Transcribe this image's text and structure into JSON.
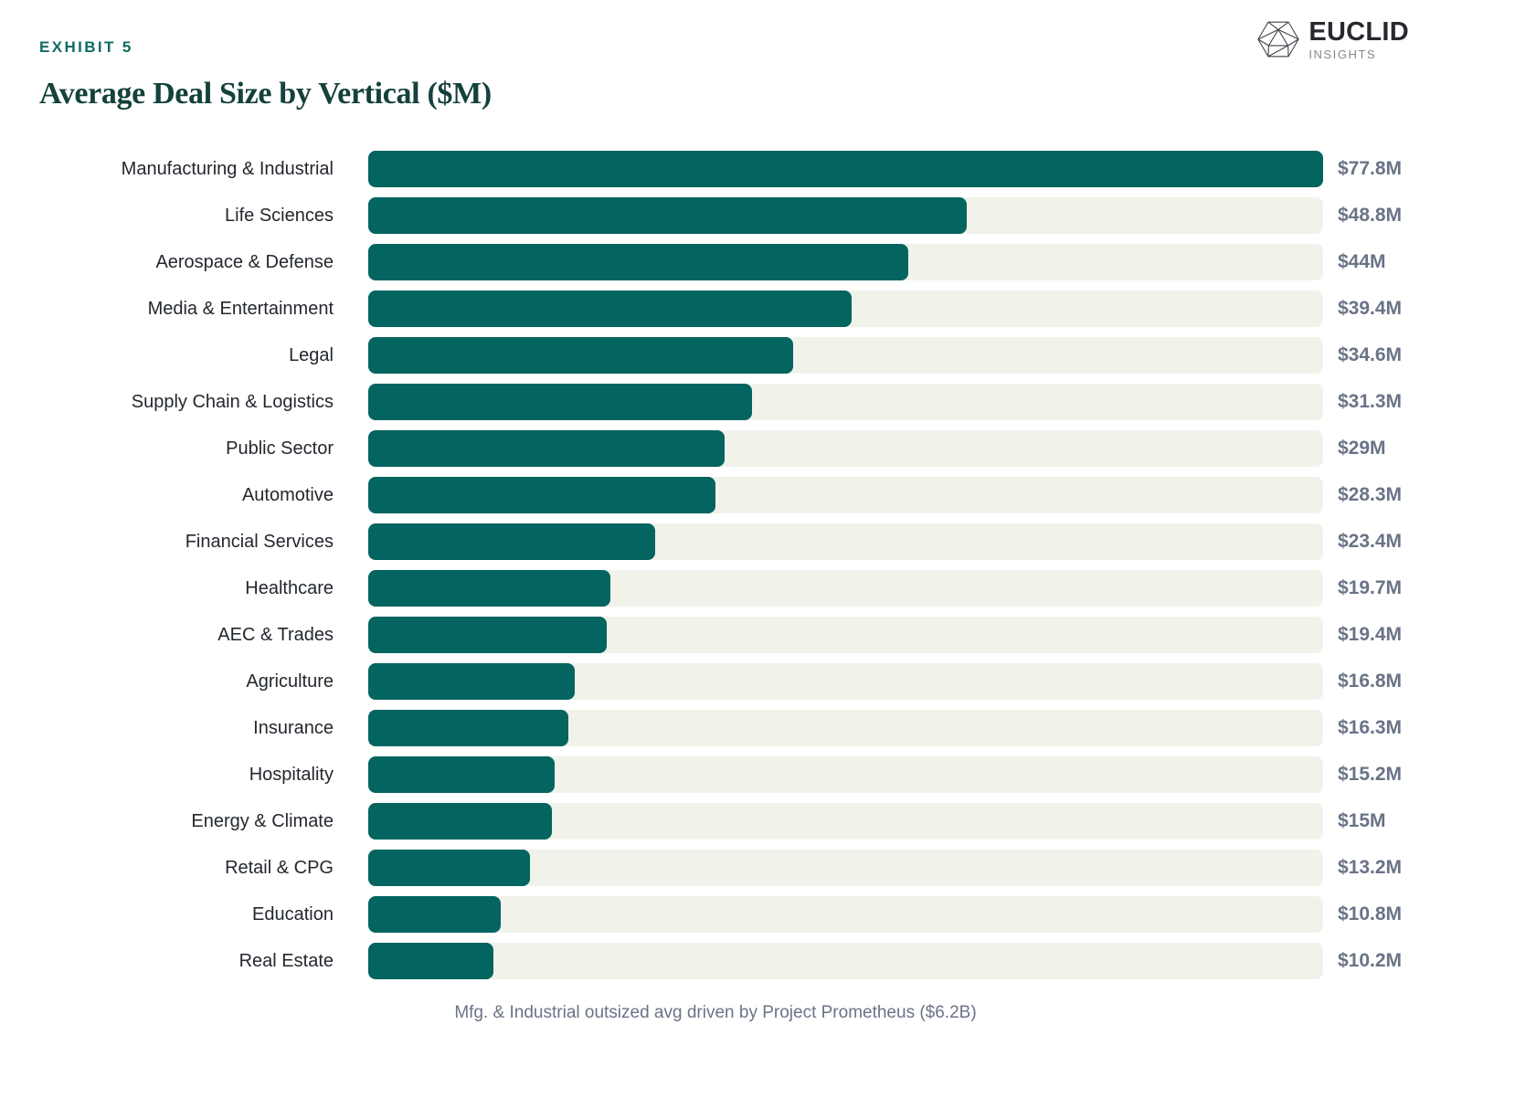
{
  "header": {
    "exhibit_label": "EXHIBIT 5",
    "title": "Average Deal Size by Vertical ($M)",
    "logo": {
      "name": "EUCLID",
      "subtitle": "INSIGHTS",
      "icon": "icosahedron-wireframe-icon"
    }
  },
  "chart_data": {
    "type": "bar",
    "orientation": "horizontal",
    "title": "Average Deal Size by Vertical ($M)",
    "categories": [
      "Manufacturing & Industrial",
      "Life Sciences",
      "Aerospace & Defense",
      "Media & Entertainment",
      "Legal",
      "Supply Chain & Logistics",
      "Public Sector",
      "Automotive",
      "Financial Services",
      "Healthcare",
      "AEC & Trades",
      "Agriculture",
      "Insurance",
      "Hospitality",
      "Energy & Climate",
      "Retail & CPG",
      "Education",
      "Real Estate"
    ],
    "values": [
      77.8,
      48.8,
      44,
      39.4,
      34.6,
      31.3,
      29,
      28.3,
      23.4,
      19.7,
      19.4,
      16.8,
      16.3,
      15.2,
      15,
      13.2,
      10.8,
      10.2
    ],
    "value_labels": [
      "$77.8M",
      "$48.8M",
      "$44M",
      "$39.4M",
      "$34.6M",
      "$31.3M",
      "$29M",
      "$28.3M",
      "$23.4M",
      "$19.7M",
      "$19.4M",
      "$16.8M",
      "$16.3M",
      "$15.2M",
      "$15M",
      "$13.2M",
      "$10.8M",
      "$10.2M"
    ],
    "xlim": [
      0,
      77.8
    ],
    "unit": "$M",
    "legend": "none",
    "grid": "off",
    "bar_color": "#036460",
    "track_color": "#f1f2ea",
    "title_color": "#14413c",
    "exhibit_color": "#0e6b64",
    "annotation": "Mfg. & Industrial outsized avg driven by Project Prometheus ($6.2B)"
  },
  "footer": {
    "caption": "Mfg. & Industrial outsized avg driven by Project Prometheus ($6.2B)"
  }
}
